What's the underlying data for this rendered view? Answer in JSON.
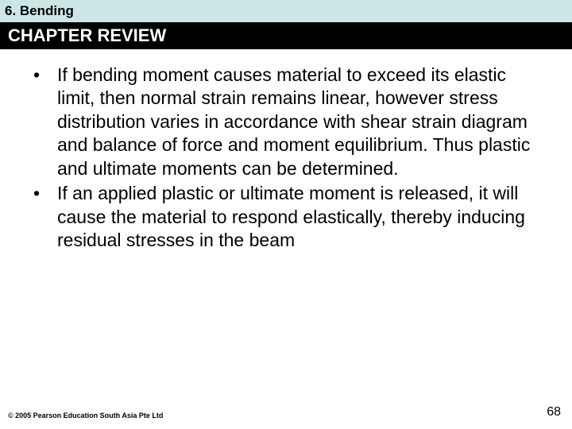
{
  "header": {
    "chapter_label": "6. Bending"
  },
  "section": {
    "title": "CHAPTER REVIEW"
  },
  "bullets": [
    {
      "marker": "•",
      "text": "If bending moment causes material to exceed its elastic limit, then normal strain remains linear, however stress distribution varies in accordance with shear strain diagram and balance of force and moment equilibrium. Thus plastic and ultimate moments can be determined."
    },
    {
      "marker": "•",
      "text": "If an applied plastic or ultimate moment is released, it will cause the material to respond elastically, thereby inducing residual stresses in the beam"
    }
  ],
  "footer": {
    "copyright": "© 2005 Pearson Education South Asia Pte Ltd",
    "page": "68"
  },
  "colors": {
    "header_bg": "#cce6e6",
    "section_bg": "#000000",
    "section_fg": "#ffffff",
    "body_bg": "#ffffff",
    "text": "#000000"
  }
}
